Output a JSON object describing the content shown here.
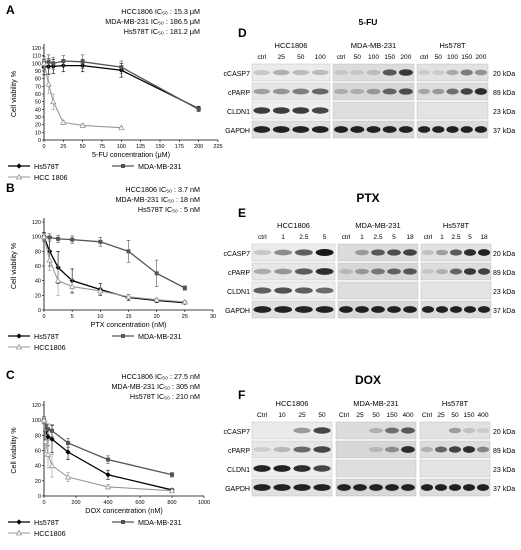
{
  "left_panels": [
    {
      "letter": "A",
      "ic50_lines": [
        "HCC1806 IC₅₀ : 15.3 μM",
        "MDA-MB-231 IC₅₀ : 186.5 μM",
        "Hs578T IC₅₀ : 181.2 μM"
      ],
      "xlabel": "5-FU concentration (μM)",
      "ylabel": "Cell viability %",
      "yticks": [
        "0",
        "10",
        "20",
        "30",
        "40",
        "50",
        "60",
        "70",
        "80",
        "90",
        "100",
        "110",
        "120"
      ],
      "xticks": [
        "0",
        "25",
        "50",
        "75",
        "100",
        "125",
        "150",
        "175",
        "200",
        "225"
      ],
      "legend": [
        "Hs578T",
        "MDA-MB-231",
        "HCC 1806"
      ]
    },
    {
      "letter": "B",
      "ic50_lines": [
        "HCC1806 IC₅₀ : 3.7 nM",
        "MDA-MB-231 IC₅₀ : 18 nM",
        "Hs578T IC₅₀ : 5 nM"
      ],
      "xlabel": "PTX concentration (nM)",
      "ylabel": "Cell viability %",
      "yticks": [
        "0",
        "20",
        "40",
        "60",
        "80",
        "100",
        "120"
      ],
      "xticks": [
        "0",
        "5",
        "10",
        "15",
        "20",
        "25",
        "30"
      ],
      "legend": [
        "Hs578T",
        "MDA-MB-231",
        "HCC1806"
      ]
    },
    {
      "letter": "C",
      "ic50_lines": [
        "HCC1806 IC₅₀ : 27.5 nM",
        "MDA-MB-231 IC₅₀ : 305 nM",
        "Hs578T IC₅₀ : 210 nM"
      ],
      "xlabel": "DOX concentration (nM)",
      "ylabel": "Cell viability %",
      "yticks": [
        "0",
        "20",
        "40",
        "60",
        "80",
        "100",
        "120"
      ],
      "xticks": [
        "0",
        "200",
        "400",
        "600",
        "800",
        "1000"
      ],
      "legend": [
        "Hs578T",
        "MDA-MB-231",
        "HCC1806"
      ]
    }
  ],
  "right_panels": [
    {
      "letter": "D",
      "drug": "5-FU",
      "cells": [
        "HCC1806",
        "MDA-MB-231",
        "Hs578T"
      ],
      "lanes": [
        [
          "ctrl",
          "25",
          "50",
          "100"
        ],
        [
          "ctrl",
          "50",
          "100",
          "150",
          "200"
        ],
        [
          "ctrl",
          "50",
          "100",
          "150",
          "200"
        ]
      ],
      "proteins": [
        "cCASP7",
        "cPARP",
        "CLDN1",
        "GAPDH"
      ],
      "kda": [
        "20 kDa",
        "89 kDa",
        "23 kDa",
        "37 kDa"
      ]
    },
    {
      "letter": "E",
      "drug": "PTX",
      "cells": [
        "HCC1806",
        "MDA-MB-231",
        "Hs578T"
      ],
      "lanes": [
        [
          "ctrl",
          "1",
          "2.5",
          "5"
        ],
        [
          "ctrl",
          "1",
          "2.5",
          "5",
          "18"
        ],
        [
          "ctrl",
          "1",
          "2.5",
          "5",
          "18"
        ]
      ],
      "proteins": [
        "cCASP7",
        "cPARP",
        "CLDN1",
        "GAPDH"
      ],
      "kda": [
        "20 kDa",
        "89 kDa",
        "23 kDa",
        "37 kDa"
      ]
    },
    {
      "letter": "F",
      "drug": "DOX",
      "cells": [
        "HCC1806",
        "MDA-MB-231",
        "Hs578T"
      ],
      "lanes": [
        [
          "Ctrl",
          "10",
          "25",
          "50"
        ],
        [
          "Ctrl",
          "25",
          "50",
          "150",
          "400"
        ],
        [
          "Ctrl",
          "25",
          "50",
          "150",
          "400"
        ]
      ],
      "proteins": [
        "cCASP7",
        "cPARP",
        "CLDN1",
        "GAPDH"
      ],
      "kda": [
        "20 kDa",
        "89 kDa",
        "23 kDa",
        "37 kDa"
      ]
    }
  ],
  "chart_data": [
    {
      "type": "line",
      "title": "",
      "xlabel": "5-FU concentration (μM)",
      "ylabel": "Cell viability %",
      "xlim": [
        0,
        225
      ],
      "ylim": [
        0,
        120
      ],
      "series": [
        {
          "name": "Hs578T",
          "x": [
            0,
            6,
            12,
            25,
            50,
            100,
            200
          ],
          "y": [
            95,
            96,
            96,
            97,
            97,
            91,
            41
          ],
          "err": [
            10,
            10,
            9,
            8,
            8,
            9,
            3
          ]
        },
        {
          "name": "MDA-MB-231",
          "x": [
            0,
            6,
            12,
            25,
            50,
            100,
            200
          ],
          "y": [
            101,
            102,
            100,
            103,
            102,
            95,
            40
          ],
          "err": [
            8,
            9,
            8,
            7,
            9,
            8,
            3
          ]
        },
        {
          "name": "HCC 1806",
          "x": [
            0,
            6,
            12,
            25,
            50,
            100
          ],
          "y": [
            100,
            73,
            50,
            23,
            19,
            16
          ],
          "err": [
            6,
            12,
            10,
            3,
            2,
            2
          ]
        }
      ]
    },
    {
      "type": "line",
      "title": "",
      "xlabel": "PTX concentration (nM)",
      "ylabel": "Cell viability %",
      "xlim": [
        0,
        30
      ],
      "ylim": [
        0,
        120
      ],
      "series": [
        {
          "name": "Hs578T",
          "x": [
            0,
            1,
            2.5,
            5,
            10,
            15,
            20,
            25
          ],
          "y": [
            100,
            80,
            58,
            40,
            28,
            17,
            13,
            10
          ],
          "err": [
            6,
            20,
            22,
            16,
            8,
            4,
            3,
            2
          ]
        },
        {
          "name": "MDA-MB-231",
          "x": [
            0,
            1,
            2.5,
            5,
            10,
            15,
            20,
            25
          ],
          "y": [
            100,
            99,
            97,
            96,
            93,
            80,
            50,
            30
          ],
          "err": [
            4,
            5,
            5,
            5,
            6,
            15,
            18,
            3
          ]
        },
        {
          "name": "HCC1806",
          "x": [
            0,
            1,
            2.5,
            5,
            10,
            15,
            20,
            25
          ],
          "y": [
            100,
            68,
            40,
            32,
            26,
            18,
            14,
            11
          ],
          "err": [
            5,
            14,
            20,
            10,
            5,
            3,
            2,
            2
          ]
        }
      ]
    },
    {
      "type": "line",
      "title": "",
      "xlabel": "DOX concentration (nM)",
      "ylabel": "Cell viability %",
      "xlim": [
        0,
        1000
      ],
      "ylim": [
        0,
        120
      ],
      "series": [
        {
          "name": "Hs578T",
          "x": [
            0,
            10,
            25,
            50,
            150,
            400,
            800
          ],
          "y": [
            100,
            85,
            78,
            75,
            58,
            28,
            8
          ],
          "err": [
            5,
            10,
            12,
            18,
            10,
            6,
            2
          ]
        },
        {
          "name": "MDA-MB-231",
          "x": [
            0,
            10,
            25,
            50,
            150,
            400,
            800
          ],
          "y": [
            100,
            92,
            88,
            86,
            70,
            48,
            28
          ],
          "err": [
            4,
            6,
            7,
            8,
            6,
            5,
            3
          ]
        },
        {
          "name": "HCC1806",
          "x": [
            0,
            10,
            25,
            50,
            150,
            400,
            800
          ],
          "y": [
            100,
            72,
            55,
            40,
            25,
            12,
            7
          ],
          "err": [
            5,
            15,
            18,
            15,
            6,
            3,
            2
          ]
        }
      ]
    }
  ]
}
